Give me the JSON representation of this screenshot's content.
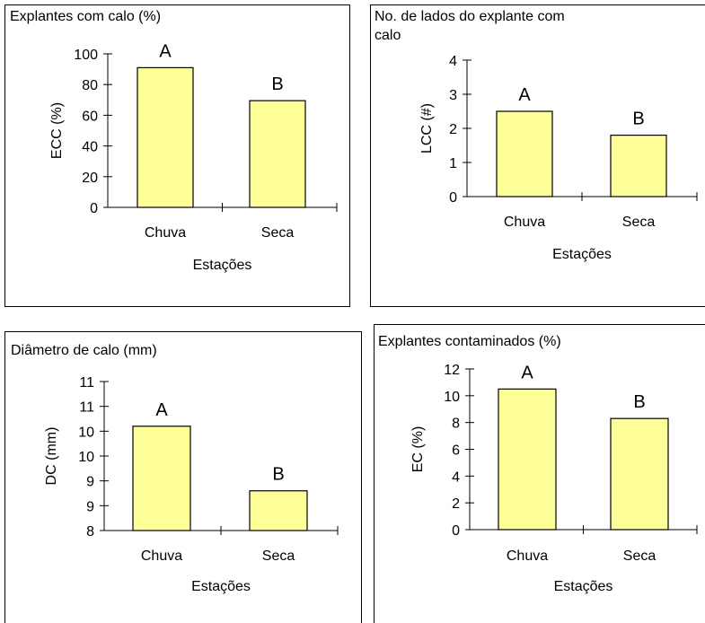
{
  "chart_data": [
    {
      "type": "bar",
      "title": "Explantes com calo (%)",
      "xlabel": "Estações",
      "ylabel": "ECC (%)",
      "categories": [
        "Chuva",
        "Seca"
      ],
      "values": [
        91,
        69.5
      ],
      "bar_labels": [
        "A",
        "B"
      ],
      "ylim": [
        0,
        100
      ],
      "yticks": [
        0,
        20,
        40,
        60,
        80,
        100
      ],
      "ytick_labels": [
        "0",
        "20",
        "40",
        "60",
        "80",
        "100"
      ],
      "bar_color": "#ffff99",
      "grid": false
    },
    {
      "type": "bar",
      "title": "No. de lados do explante com calo",
      "title_lines": [
        "No. de lados do explante com",
        "calo"
      ],
      "xlabel": "Estações",
      "ylabel": "LCC (#)",
      "categories": [
        "Chuva",
        "Seca"
      ],
      "values": [
        2.5,
        1.8
      ],
      "bar_labels": [
        "A",
        "B"
      ],
      "ylim": [
        0,
        4
      ],
      "yticks": [
        0,
        1,
        2,
        3,
        4
      ],
      "ytick_labels": [
        "0",
        "1",
        "2",
        "3",
        "4"
      ],
      "bar_color": "#ffff99",
      "grid": false
    },
    {
      "type": "bar",
      "title": "Diâmetro de calo (mm)",
      "xlabel": "Estações",
      "ylabel": "DC (mm)",
      "categories": [
        "Chuva",
        "Seca"
      ],
      "values": [
        10.1,
        8.8
      ],
      "bar_labels": [
        "A",
        "B"
      ],
      "ylim": [
        8,
        11
      ],
      "yticks": [
        8,
        8.5,
        9,
        9.5,
        10,
        10.5,
        11
      ],
      "ytick_labels": [
        "8",
        "9",
        "9",
        "10",
        "10",
        "11",
        "11"
      ],
      "bar_color": "#ffff99",
      "grid": false
    },
    {
      "type": "bar",
      "title": "Explantes contaminados (%)",
      "xlabel": "Estações",
      "ylabel": "EC (%)",
      "categories": [
        "Chuva",
        "Seca"
      ],
      "values": [
        10.5,
        8.3
      ],
      "bar_labels": [
        "A",
        "B"
      ],
      "ylim": [
        0,
        12
      ],
      "yticks": [
        0,
        2,
        4,
        6,
        8,
        10,
        12
      ],
      "ytick_labels": [
        "0",
        "2",
        "4",
        "6",
        "8",
        "10",
        "12"
      ],
      "bar_color": "#ffff99",
      "grid": false
    }
  ]
}
